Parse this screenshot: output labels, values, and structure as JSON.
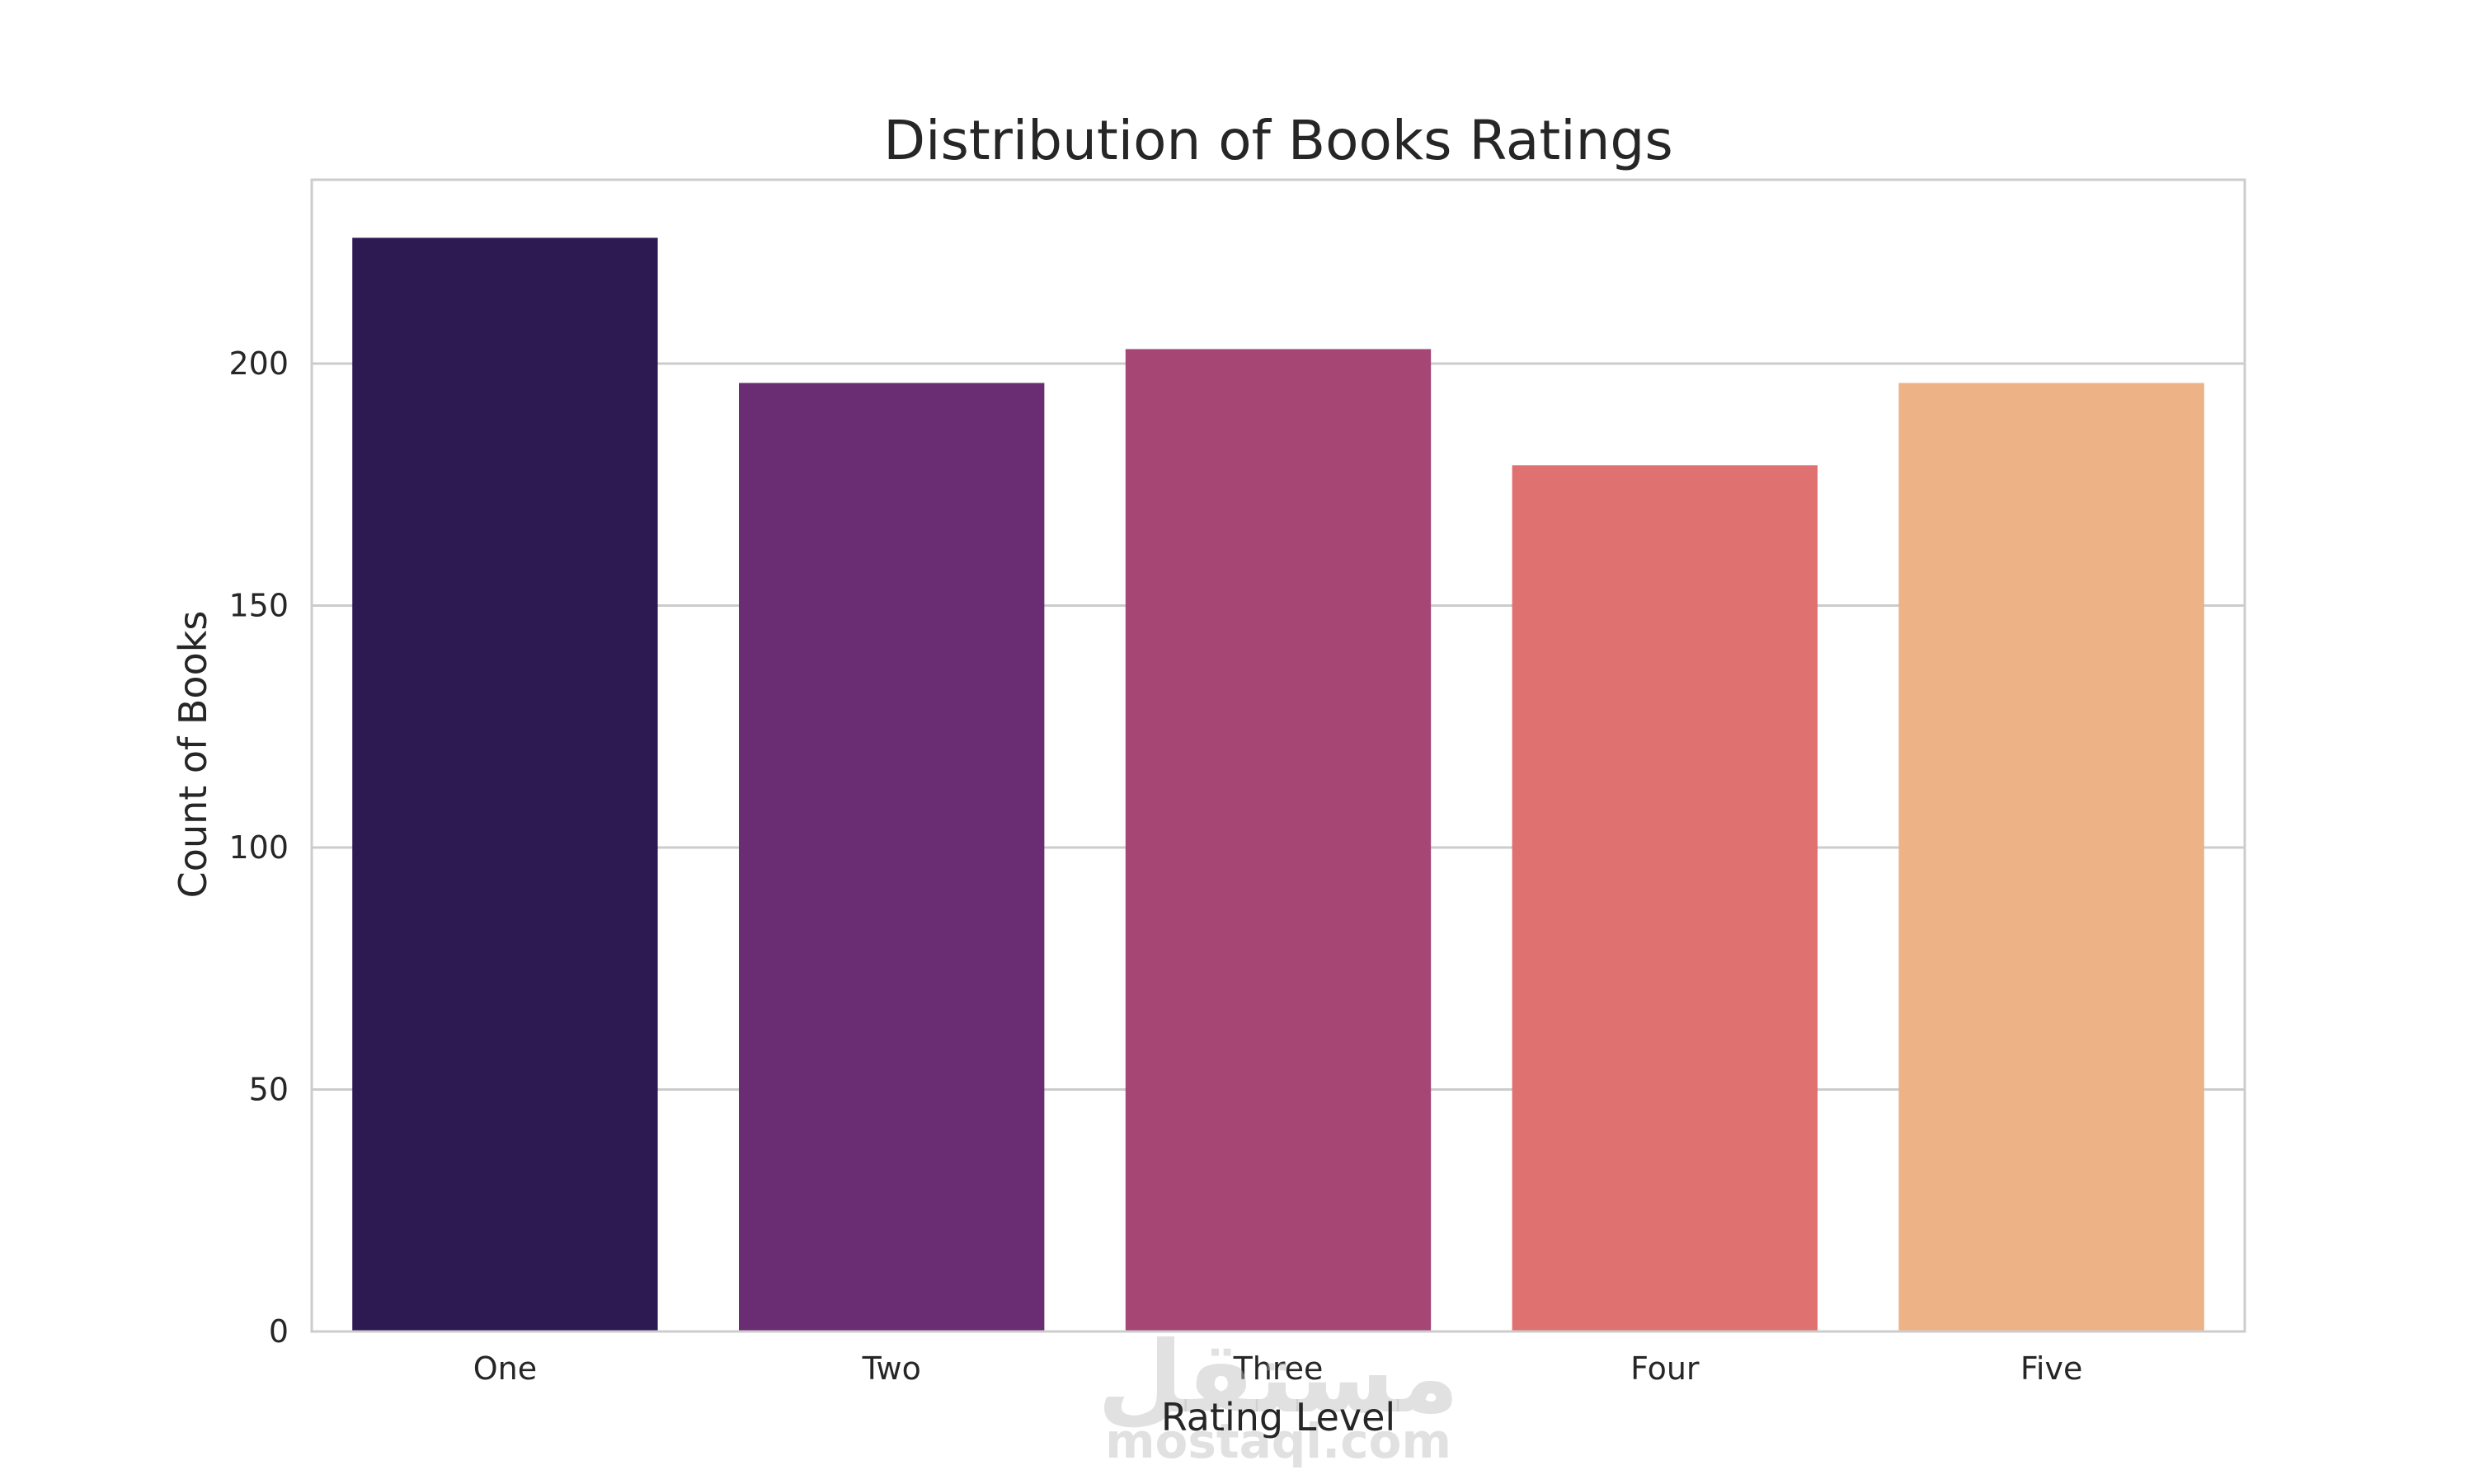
{
  "chart_data": {
    "type": "bar",
    "title": "Distribution of Books Ratings",
    "xlabel": "Rating Level",
    "ylabel": "Count of Books",
    "categories": [
      "One",
      "Two",
      "Three",
      "Four",
      "Five"
    ],
    "values": [
      226,
      196,
      203,
      179,
      196
    ],
    "colors": [
      "#2e1a53",
      "#6a2c72",
      "#a54675",
      "#df7170",
      "#eeb287"
    ],
    "ylim": [
      0,
      238
    ],
    "yticks": [
      0,
      50,
      100,
      150,
      200
    ],
    "grid": true,
    "gridColor": "#cccccc",
    "axisColor": "#cccccc"
  },
  "watermark": {
    "arabic": "مستقل",
    "latin": "mostaql.com"
  }
}
